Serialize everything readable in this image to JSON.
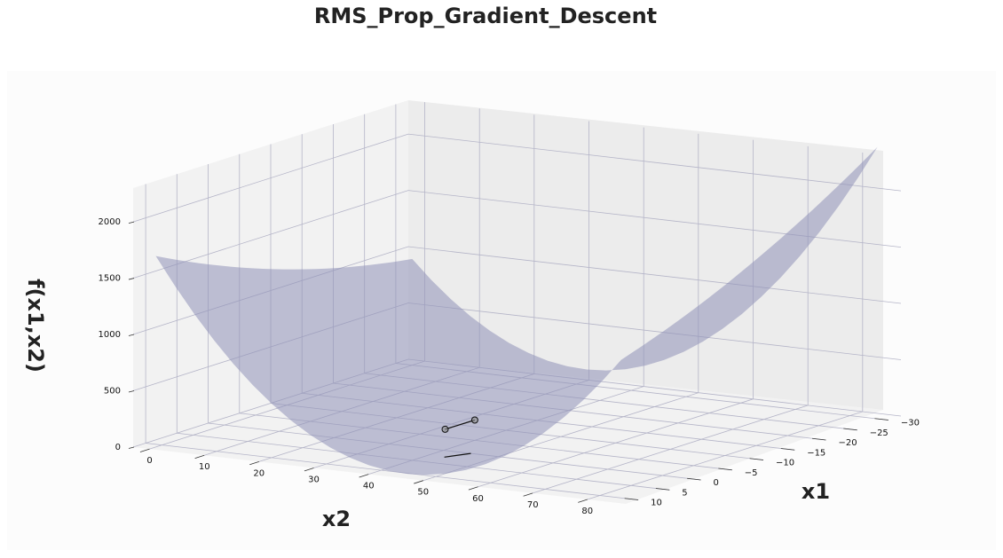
{
  "chart_data": {
    "type": "surface3d",
    "title": "RMS_Prop_Gradient_Descent",
    "xlabel": "x1",
    "ylabel": "x2",
    "zlabel": "f(x1,x2)",
    "x1_ticks": [
      "10",
      "5",
      "0",
      "−5",
      "−10",
      "−15",
      "−20",
      "−25",
      "−30"
    ],
    "x2_ticks": [
      "0",
      "10",
      "20",
      "30",
      "40",
      "50",
      "60",
      "70",
      "80"
    ],
    "z_ticks": [
      "0",
      "500",
      "1000",
      "1500",
      "2000"
    ],
    "x1_range": [
      12,
      -32
    ],
    "x2_range": [
      -3,
      87
    ],
    "z_range": [
      0,
      2300
    ],
    "surface": {
      "function": "f(x1,x2) paraboloid with minimum near x1 = 0, x2 = 40",
      "color": "#8f91b8",
      "alpha": 0.55
    },
    "path": [
      {
        "x1": -2.0,
        "x2": 38.0,
        "z": 140
      },
      {
        "x1": -5.0,
        "x2": 40.0,
        "z": 180
      }
    ],
    "path_shadow": [
      {
        "x1": 2.5,
        "x2": 43.0,
        "z": 0
      },
      {
        "x1": 0.0,
        "x2": 45.0,
        "z": 0
      }
    ],
    "grid": true
  }
}
